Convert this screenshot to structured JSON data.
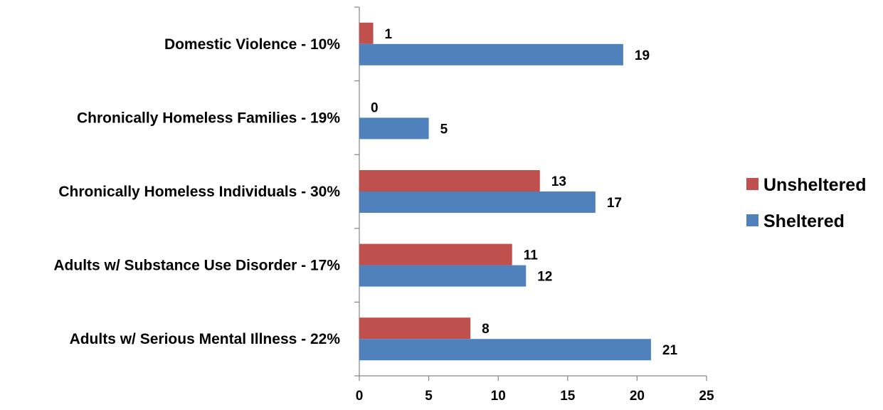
{
  "chart_data": {
    "type": "bar",
    "orientation": "horizontal",
    "categories": [
      "Domestic Violence - 10%",
      "Chronically Homeless Families - 19%",
      "Chronically Homeless Individuals - 30%",
      "Adults w/ Substance Use Disorder - 17%",
      "Adults w/ Serious Mental Illness - 22%"
    ],
    "series": [
      {
        "name": "Unsheltered",
        "color": "#c0504d",
        "values": [
          1,
          0,
          13,
          11,
          8
        ]
      },
      {
        "name": "Sheltered",
        "color": "#4f81bd",
        "values": [
          19,
          5,
          17,
          12,
          21
        ]
      }
    ],
    "xlim": [
      0,
      25
    ],
    "xticks": [
      0,
      5,
      10,
      15,
      20,
      25
    ],
    "grid": false,
    "legend_position": "right",
    "data_labels": true
  }
}
